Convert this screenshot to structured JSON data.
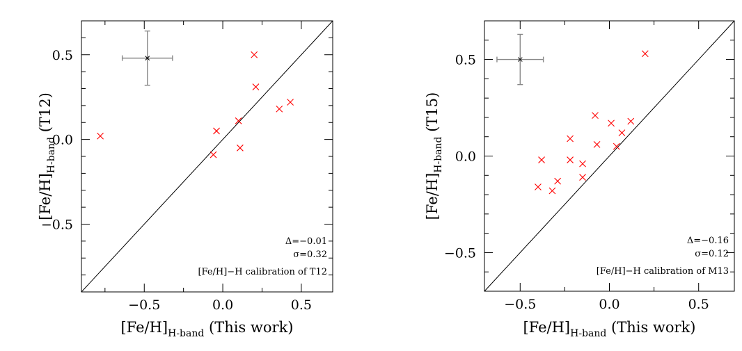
{
  "chart_data": [
    {
      "type": "scatter",
      "xlabel": {
        "main": "[Fe/H]",
        "sub": "H-band",
        "suffix": " (This work)"
      },
      "ylabel": {
        "main": "[Fe/H]",
        "sub": "H-band",
        "suffix": " (T12)"
      },
      "xlim": [
        -0.9,
        0.7
      ],
      "ylim": [
        -0.9,
        0.7
      ],
      "xticks": [
        -0.5,
        0.0,
        0.5
      ],
      "xtick_labels": [
        "−0.5",
        "0.0",
        "0.5"
      ],
      "yticks": [
        -0.5,
        0.0,
        0.5
      ],
      "ytick_labels": [
        "−0.5",
        "0.0",
        "0.5"
      ],
      "x_minor_step": 0.25,
      "y_minor_step": 0.1,
      "grid": false,
      "identity_line": true,
      "marker": "x",
      "marker_color": "#ff0000",
      "points": [
        {
          "x": -0.78,
          "y": 0.02
        },
        {
          "x": 0.2,
          "y": 0.5
        },
        {
          "x": 0.21,
          "y": 0.31
        },
        {
          "x": 0.36,
          "y": 0.18
        },
        {
          "x": 0.43,
          "y": 0.22
        },
        {
          "x": 0.1,
          "y": 0.11
        },
        {
          "x": -0.04,
          "y": 0.05
        },
        {
          "x": -0.06,
          "y": -0.09
        },
        {
          "x": 0.11,
          "y": -0.05
        }
      ],
      "typical_error": {
        "x": -0.48,
        "y": 0.48,
        "xerr": 0.16,
        "yerr": 0.16
      },
      "annotations": [
        "Δ=−0.01",
        "σ=0.32",
        "[Fe/H]−H calibration of T12"
      ]
    },
    {
      "type": "scatter",
      "xlabel": {
        "main": "[Fe/H]",
        "sub": "H-band",
        "suffix": " (This work)"
      },
      "ylabel": {
        "main": "[Fe/H]",
        "sub": "H-band",
        "suffix": " (T15)"
      },
      "xlim": [
        -0.7,
        0.7
      ],
      "ylim": [
        -0.7,
        0.7
      ],
      "xticks": [
        -0.5,
        0.0,
        0.5
      ],
      "xtick_labels": [
        "−0.5",
        "0.0",
        "0.5"
      ],
      "yticks": [
        -0.5,
        0.0,
        0.5
      ],
      "ytick_labels": [
        "−0.5",
        "0.0",
        "0.5"
      ],
      "x_minor_step": 0.25,
      "y_minor_step": 0.1,
      "grid": false,
      "identity_line": true,
      "marker": "x",
      "marker_color": "#ff0000",
      "points": [
        {
          "x": 0.2,
          "y": 0.53
        },
        {
          "x": -0.08,
          "y": 0.21
        },
        {
          "x": 0.01,
          "y": 0.17
        },
        {
          "x": 0.12,
          "y": 0.18
        },
        {
          "x": 0.07,
          "y": 0.12
        },
        {
          "x": -0.22,
          "y": 0.09
        },
        {
          "x": -0.07,
          "y": 0.06
        },
        {
          "x": 0.04,
          "y": 0.05
        },
        {
          "x": -0.38,
          "y": -0.02
        },
        {
          "x": -0.22,
          "y": -0.02
        },
        {
          "x": -0.15,
          "y": -0.04
        },
        {
          "x": -0.15,
          "y": -0.11
        },
        {
          "x": -0.29,
          "y": -0.13
        },
        {
          "x": -0.4,
          "y": -0.16
        },
        {
          "x": -0.32,
          "y": -0.18
        }
      ],
      "typical_error": {
        "x": -0.5,
        "y": 0.5,
        "xerr": 0.13,
        "yerr": 0.13
      },
      "annotations": [
        "Δ=−0.16",
        "σ=0.12",
        "[Fe/H]−H calibration of M13"
      ]
    }
  ]
}
